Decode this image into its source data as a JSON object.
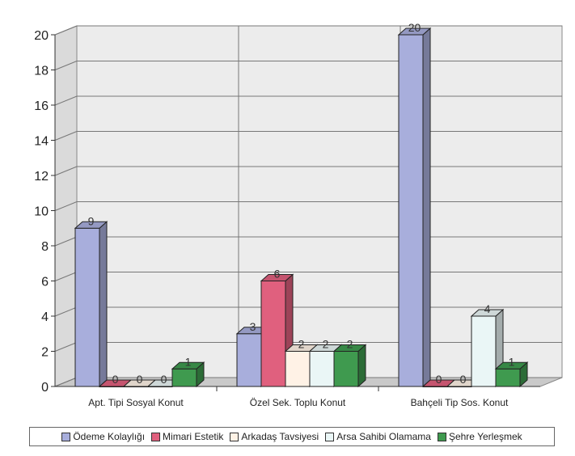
{
  "chart_data": {
    "type": "bar",
    "title": "",
    "xlabel": "",
    "ylabel": "",
    "ylim": [
      0,
      20
    ],
    "yticks": [
      "0",
      "2",
      "4",
      "6",
      "8",
      "10",
      "12",
      "14",
      "16",
      "18",
      "20"
    ],
    "grid": true,
    "legend_position": "bottom",
    "categories": [
      "Apt. Tipi Sosyal Konut",
      "Özel Sek. Toplu Konut",
      "Bahçeli Tip Sos. Konut"
    ],
    "series": [
      {
        "name": "Ödeme Kolaylığı",
        "color": "#a8aedc",
        "values": [
          9,
          3,
          20
        ]
      },
      {
        "name": "Mimari Estetik",
        "color": "#e0607e",
        "values": [
          0,
          6,
          0
        ]
      },
      {
        "name": "Arkadaş Tavsiyesi",
        "color": "#fff2e6",
        "values": [
          0,
          2,
          0
        ]
      },
      {
        "name": "Arsa Sahibi Olamama",
        "color": "#eaf6f6",
        "values": [
          0,
          2,
          4
        ]
      },
      {
        "name": "Şehre Yerleşmek",
        "color": "#3f9a4f",
        "values": [
          1,
          2,
          1
        ]
      }
    ]
  }
}
